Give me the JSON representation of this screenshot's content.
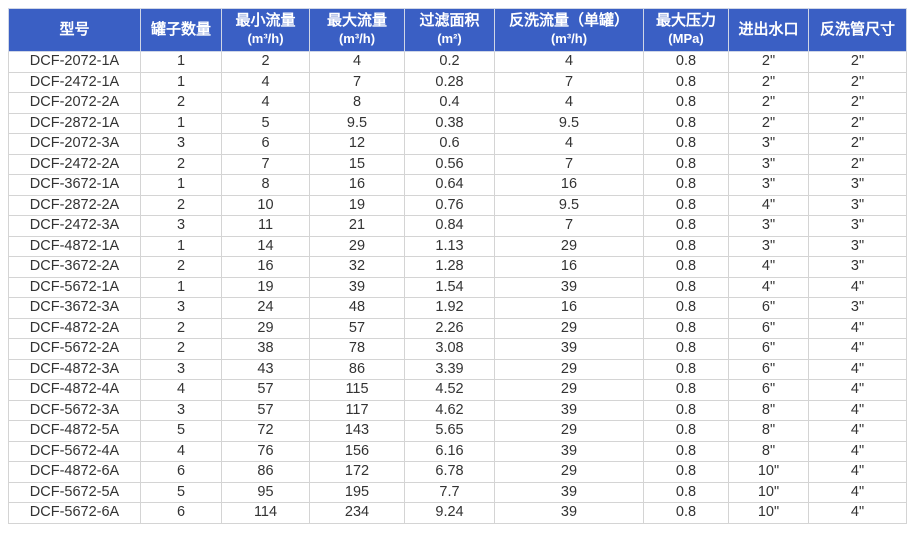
{
  "headers": [
    {
      "label": "型号",
      "unit": ""
    },
    {
      "label": "罐子数量",
      "unit": ""
    },
    {
      "label": "最小流量",
      "unit": "(m³/h)"
    },
    {
      "label": "最大流量",
      "unit": "(m³/h)"
    },
    {
      "label": "过滤面积",
      "unit": "(m²)"
    },
    {
      "label": "反洗流量（单罐）",
      "unit": "(m³/h)"
    },
    {
      "label": "最大压力",
      "unit": "(MPa)"
    },
    {
      "label": "进出水口",
      "unit": ""
    },
    {
      "label": "反洗管尺寸",
      "unit": ""
    }
  ],
  "rows": [
    [
      "DCF-2072-1A",
      "1",
      "2",
      "4",
      "0.2",
      "4",
      "0.8",
      "2\"",
      "2\""
    ],
    [
      "DCF-2472-1A",
      "1",
      "4",
      "7",
      "0.28",
      "7",
      "0.8",
      "2\"",
      "2\""
    ],
    [
      "DCF-2072-2A",
      "2",
      "4",
      "8",
      "0.4",
      "4",
      "0.8",
      "2\"",
      "2\""
    ],
    [
      "DCF-2872-1A",
      "1",
      "5",
      "9.5",
      "0.38",
      "9.5",
      "0.8",
      "2\"",
      "2\""
    ],
    [
      "DCF-2072-3A",
      "3",
      "6",
      "12",
      "0.6",
      "4",
      "0.8",
      "3\"",
      "2\""
    ],
    [
      "DCF-2472-2A",
      "2",
      "7",
      "15",
      "0.56",
      "7",
      "0.8",
      "3\"",
      "2\""
    ],
    [
      "DCF-3672-1A",
      "1",
      "8",
      "16",
      "0.64",
      "16",
      "0.8",
      "3\"",
      "3\""
    ],
    [
      "DCF-2872-2A",
      "2",
      "10",
      "19",
      "0.76",
      "9.5",
      "0.8",
      "4\"",
      "3\""
    ],
    [
      "DCF-2472-3A",
      "3",
      "11",
      "21",
      "0.84",
      "7",
      "0.8",
      "3\"",
      "3\""
    ],
    [
      "DCF-4872-1A",
      "1",
      "14",
      "29",
      "1.13",
      "29",
      "0.8",
      "3\"",
      "3\""
    ],
    [
      "DCF-3672-2A",
      "2",
      "16",
      "32",
      "1.28",
      "16",
      "0.8",
      "4\"",
      "3\""
    ],
    [
      "DCF-5672-1A",
      "1",
      "19",
      "39",
      "1.54",
      "39",
      "0.8",
      "4\"",
      "4\""
    ],
    [
      "DCF-3672-3A",
      "3",
      "24",
      "48",
      "1.92",
      "16",
      "0.8",
      "6\"",
      "3\""
    ],
    [
      "DCF-4872-2A",
      "2",
      "29",
      "57",
      "2.26",
      "29",
      "0.8",
      "6\"",
      "4\""
    ],
    [
      "DCF-5672-2A",
      "2",
      "38",
      "78",
      "3.08",
      "39",
      "0.8",
      "6\"",
      "4\""
    ],
    [
      "DCF-4872-3A",
      "3",
      "43",
      "86",
      "3.39",
      "29",
      "0.8",
      "6\"",
      "4\""
    ],
    [
      "DCF-4872-4A",
      "4",
      "57",
      "115",
      "4.52",
      "29",
      "0.8",
      "6\"",
      "4\""
    ],
    [
      "DCF-5672-3A",
      "3",
      "57",
      "117",
      "4.62",
      "39",
      "0.8",
      "8\"",
      "4\""
    ],
    [
      "DCF-4872-5A",
      "5",
      "72",
      "143",
      "5.65",
      "29",
      "0.8",
      "8\"",
      "4\""
    ],
    [
      "DCF-5672-4A",
      "4",
      "76",
      "156",
      "6.16",
      "39",
      "0.8",
      "8\"",
      "4\""
    ],
    [
      "DCF-4872-6A",
      "6",
      "86",
      "172",
      "6.78",
      "29",
      "0.8",
      "10\"",
      "4\""
    ],
    [
      "DCF-5672-5A",
      "5",
      "95",
      "195",
      "7.7",
      "39",
      "0.8",
      "10\"",
      "4\""
    ],
    [
      "DCF-5672-6A",
      "6",
      "114",
      "234",
      "9.24",
      "39",
      "0.8",
      "10\"",
      "4\""
    ]
  ],
  "colors": {
    "header_bg": "#3a5fc4",
    "header_text": "#ffffff"
  }
}
